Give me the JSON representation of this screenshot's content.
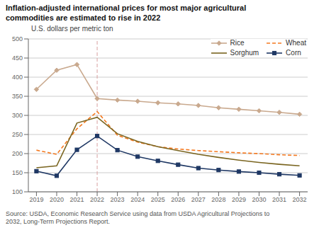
{
  "chart_data": {
    "type": "line",
    "title": "Inflation-adjusted international prices for most major agricultural\ncommodities are estimated to rise in 2022",
    "subtitle": "U.S. dollars per metric ton",
    "annotations": [
      {
        "text": "Source: USDA, Economic Research Service using data from USDA Agricultural Projections to\n2032, Long-Term Projections Report."
      },
      {
        "x": 2022,
        "color": "#d9a0a0",
        "line_style": "dashed"
      }
    ],
    "x": [
      2019,
      2020,
      2021,
      2022,
      2023,
      2024,
      2025,
      2026,
      2027,
      2028,
      2029,
      2030,
      2031,
      2032
    ],
    "series": [
      {
        "name": "Rice",
        "color": "#c9a98e",
        "marker": "diamond",
        "line_style": "solid",
        "values": [
          368,
          418,
          433,
          344,
          340,
          337,
          333,
          330,
          326,
          320,
          316,
          312,
          308,
          303
        ]
      },
      {
        "name": "Wheat",
        "color": "#f47920",
        "marker": "none",
        "line_style": "dashed",
        "values": [
          209,
          198,
          265,
          310,
          248,
          230,
          218,
          212,
          208,
          205,
          202,
          200,
          197,
          195
        ]
      },
      {
        "name": "Sorghum",
        "color": "#7a6520",
        "marker": "none",
        "line_style": "solid",
        "values": [
          163,
          168,
          280,
          295,
          252,
          232,
          218,
          208,
          198,
          190,
          183,
          177,
          172,
          168
        ]
      },
      {
        "name": "Corn",
        "color": "#1f3864",
        "marker": "square",
        "line_style": "solid",
        "values": [
          154,
          142,
          210,
          246,
          209,
          192,
          181,
          171,
          162,
          157,
          153,
          150,
          146,
          143
        ]
      }
    ],
    "xlim": [
      2018.6,
      2032.4
    ],
    "xticks": [
      2019,
      2020,
      2021,
      2022,
      2023,
      2024,
      2025,
      2026,
      2027,
      2028,
      2029,
      2030,
      2031,
      2032
    ],
    "ylim": [
      100,
      500
    ],
    "yticks": [
      100,
      150,
      200,
      250,
      300,
      350,
      400,
      450,
      500
    ],
    "grid": "y",
    "legend": "upper right"
  }
}
